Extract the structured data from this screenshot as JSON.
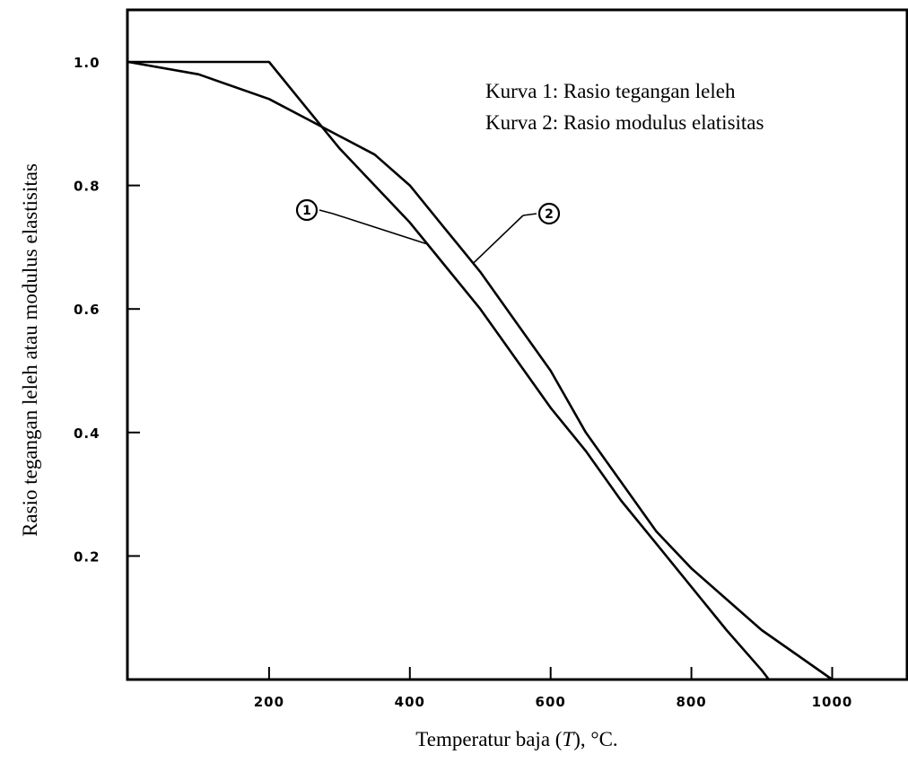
{
  "chart_data": {
    "type": "line",
    "xlabel_main": "Temperatur baja (",
    "xlabel_var": "T",
    "xlabel_unit": "), °C.",
    "ylabel": "Rasio tegangan leleh atau modulus elastisitas",
    "xlim": [
      0,
      1100
    ],
    "ylim": [
      0,
      1.1
    ],
    "x_ticks": [
      200,
      400,
      600,
      800,
      1000
    ],
    "x_tick_labels": [
      "200",
      "400",
      "600",
      "800",
      "1000"
    ],
    "y_ticks": [
      0.2,
      0.4,
      0.6,
      0.8,
      1.0
    ],
    "y_tick_labels": [
      "0.2",
      "0.4",
      "0.6",
      "0.8",
      "1.0"
    ],
    "legend": [
      "Kurva 1: Rasio tegangan leleh",
      "Kurva 2: Rasio modulus elatisitas"
    ],
    "legend_position": "top-right",
    "grid": false,
    "series": [
      {
        "name": "1",
        "x": [
          0,
          200,
          250,
          300,
          350,
          400,
          450,
          500,
          550,
          600,
          650,
          700,
          750,
          800,
          850,
          900,
          910
        ],
        "y": [
          1.0,
          1.0,
          0.93,
          0.86,
          0.8,
          0.74,
          0.67,
          0.6,
          0.52,
          0.44,
          0.37,
          0.29,
          0.22,
          0.15,
          0.08,
          0.015,
          0.0
        ]
      },
      {
        "name": "2",
        "x": [
          0,
          100,
          200,
          250,
          300,
          350,
          400,
          450,
          500,
          550,
          600,
          650,
          700,
          750,
          800,
          850,
          900,
          950,
          1000
        ],
        "y": [
          1.0,
          0.98,
          0.94,
          0.91,
          0.88,
          0.85,
          0.8,
          0.73,
          0.66,
          0.58,
          0.5,
          0.4,
          0.32,
          0.24,
          0.18,
          0.13,
          0.08,
          0.04,
          0.0
        ]
      }
    ],
    "annotations": [
      {
        "label": "1",
        "series": 0,
        "point_x": 425
      },
      {
        "label": "2",
        "series": 1,
        "point_x": 490
      }
    ]
  }
}
